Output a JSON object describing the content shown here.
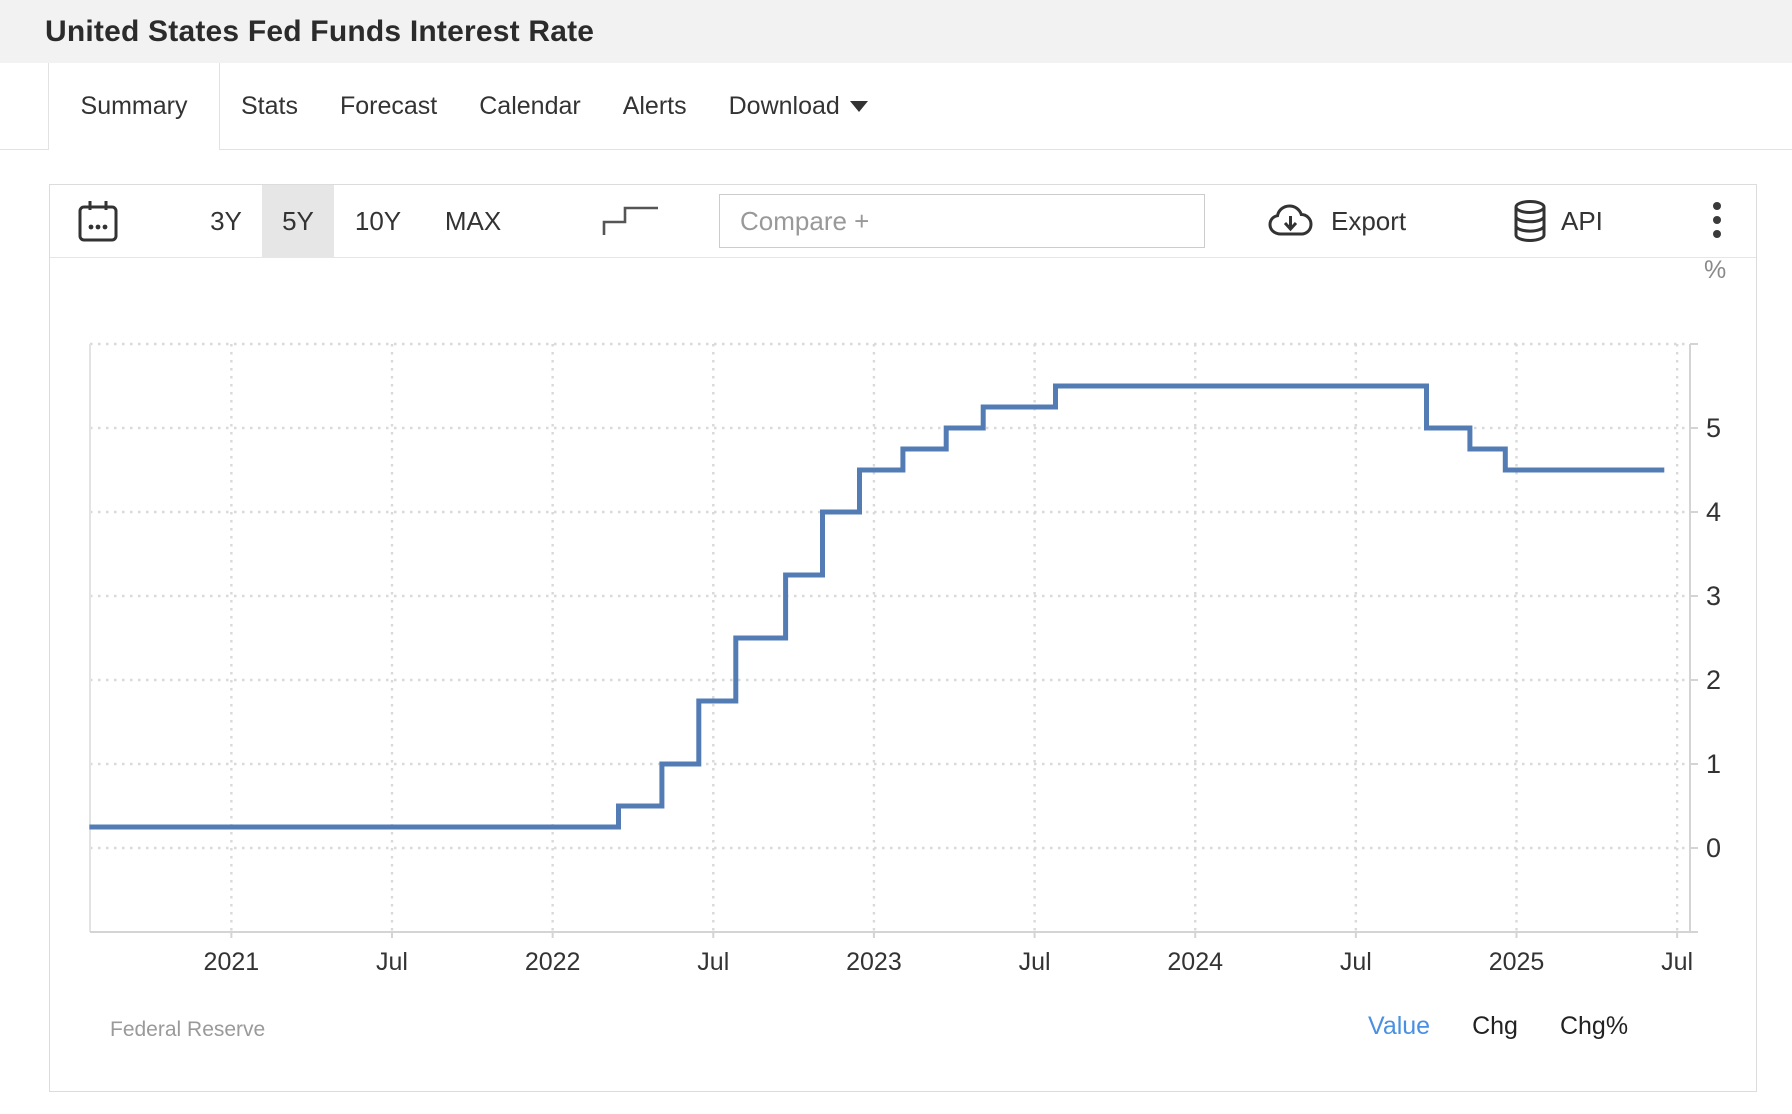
{
  "header": {
    "title": "United States Fed Funds Interest Rate"
  },
  "tabs": {
    "items": [
      {
        "label": "Summary",
        "active": true
      },
      {
        "label": "Stats",
        "active": false
      },
      {
        "label": "Forecast",
        "active": false
      },
      {
        "label": "Calendar",
        "active": false
      },
      {
        "label": "Alerts",
        "active": false
      },
      {
        "label": "Download",
        "active": false,
        "has_caret": true
      }
    ]
  },
  "toolbar": {
    "ranges": [
      {
        "label": "3Y",
        "selected": false
      },
      {
        "label": "5Y",
        "selected": true
      },
      {
        "label": "10Y",
        "selected": false
      },
      {
        "label": "MAX",
        "selected": false
      }
    ],
    "compare_placeholder": "Compare +",
    "export_label": "Export",
    "api_label": "API",
    "icons": [
      "calendar-icon",
      "step-line-icon",
      "cloud-download-icon",
      "database-icon",
      "kebab-menu-icon"
    ]
  },
  "chart_data": {
    "type": "line",
    "step": true,
    "title": "United States Fed Funds Interest Rate",
    "series_name": "Fed Funds Interest Rate",
    "unit_label": "%",
    "source": "Federal Reserve",
    "grid": true,
    "legend_position": "none",
    "xlim": [
      2020.56,
      2025.54
    ],
    "ylim": [
      -1,
      6
    ],
    "y_ticks": [
      0,
      1,
      2,
      3,
      4,
      5
    ],
    "y_gridlines": [
      0,
      1,
      2,
      3,
      4,
      5,
      6
    ],
    "x_ticks": [
      {
        "t": 2021.0,
        "label": "2021"
      },
      {
        "t": 2021.5,
        "label": "Jul"
      },
      {
        "t": 2022.0,
        "label": "2022"
      },
      {
        "t": 2022.5,
        "label": "Jul"
      },
      {
        "t": 2023.0,
        "label": "2023"
      },
      {
        "t": 2023.5,
        "label": "Jul"
      },
      {
        "t": 2024.0,
        "label": "2024"
      },
      {
        "t": 2024.5,
        "label": "Jul"
      },
      {
        "t": 2025.0,
        "label": "2025"
      },
      {
        "t": 2025.5,
        "label": "Jul"
      }
    ],
    "points": [
      {
        "date": "2020-08",
        "t": 2020.558,
        "value": 0.25
      },
      {
        "date": "2022-03",
        "t": 2022.205,
        "value": 0.5
      },
      {
        "date": "2022-05",
        "t": 2022.34,
        "value": 1.0
      },
      {
        "date": "2022-06",
        "t": 2022.455,
        "value": 1.75
      },
      {
        "date": "2022-07",
        "t": 2022.57,
        "value": 2.5
      },
      {
        "date": "2022-09",
        "t": 2022.725,
        "value": 3.25
      },
      {
        "date": "2022-11",
        "t": 2022.84,
        "value": 4.0
      },
      {
        "date": "2022-12",
        "t": 2022.955,
        "value": 4.5
      },
      {
        "date": "2023-02",
        "t": 2023.09,
        "value": 4.75
      },
      {
        "date": "2023-03",
        "t": 2023.225,
        "value": 5.0
      },
      {
        "date": "2023-05",
        "t": 2023.34,
        "value": 5.25
      },
      {
        "date": "2023-07",
        "t": 2023.565,
        "value": 5.5
      },
      {
        "date": "2024-09",
        "t": 2024.72,
        "value": 5.0
      },
      {
        "date": "2024-11",
        "t": 2024.855,
        "value": 4.75
      },
      {
        "date": "2024-12",
        "t": 2024.965,
        "value": 4.5
      },
      {
        "date": "2025-07",
        "t": 2025.46,
        "value": 4.5
      }
    ]
  },
  "footer": {
    "source": "Federal Reserve",
    "modes": [
      {
        "label": "Value",
        "active": true
      },
      {
        "label": "Chg",
        "active": false
      },
      {
        "label": "Chg%",
        "active": false
      }
    ]
  },
  "colors": {
    "line": "#537cb5",
    "active_mode": "#4a90e2",
    "header_band": "#f2f2f2",
    "selected_range_bg": "#e6e6e6",
    "gridline": "#d9d9d9",
    "axis": "#d4d4d4"
  }
}
